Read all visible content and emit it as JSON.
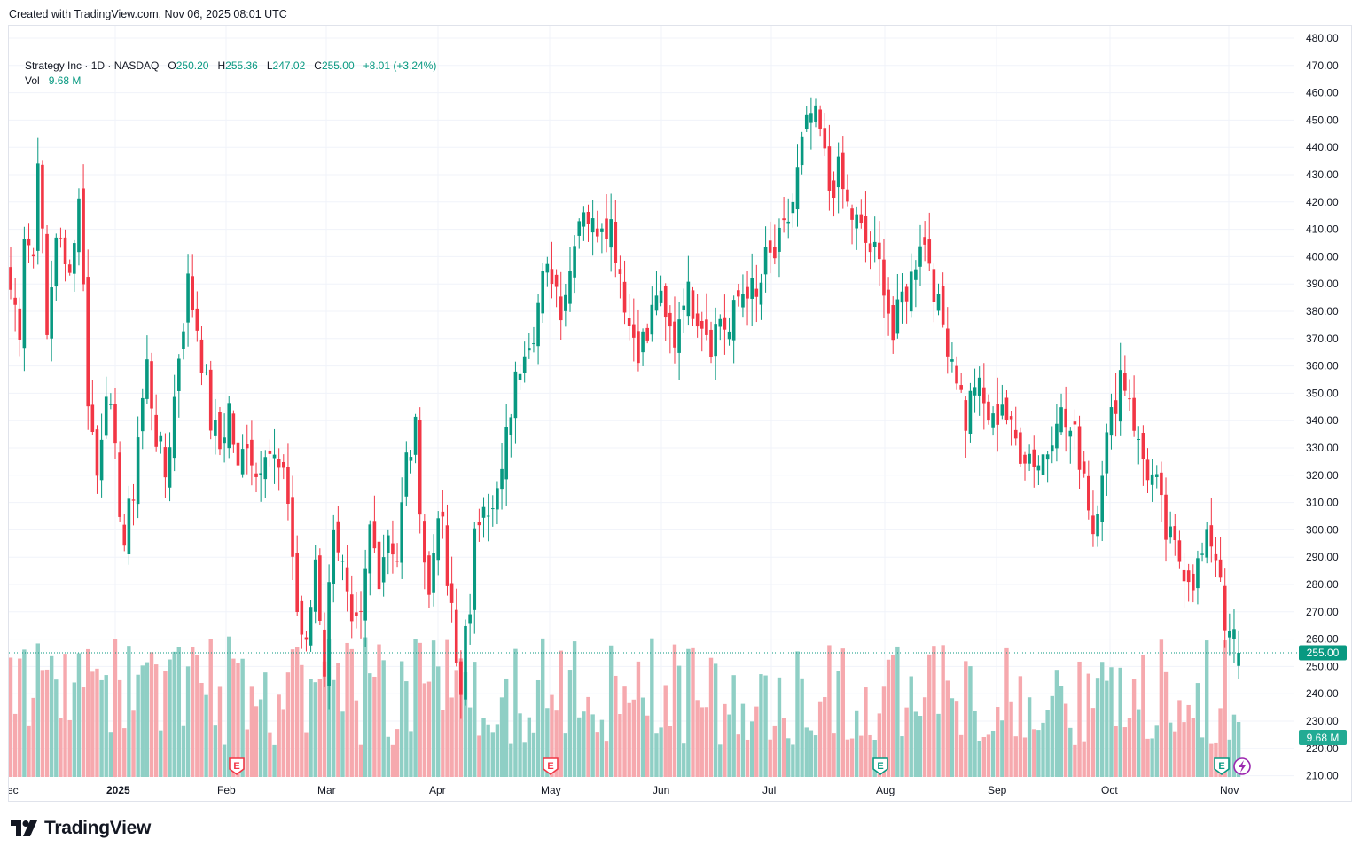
{
  "header": {
    "credit": "Created with TradingView.com, Nov 06, 2025 08:01 UTC"
  },
  "legend": {
    "symbol": "Strategy Inc · 1D · NASDAQ",
    "o_label": "O",
    "o_value": "250.20",
    "h_label": "H",
    "h_value": "255.36",
    "l_label": "L",
    "l_value": "247.02",
    "c_label": "C",
    "c_value": "255.00",
    "change": "+8.01 (+3.24%)",
    "vol_label": "Vol",
    "vol_value": "9.68 M"
  },
  "price_badge": "255.00",
  "volume_badge": "9.68 M",
  "brand": {
    "name": "TradingView"
  },
  "colors": {
    "up": "#089981",
    "down": "#f23645",
    "up_vol": "#8fcfc5",
    "down_vol": "#f6a9ae",
    "grid": "#f0f3fa",
    "axis_text": "#131722",
    "earnings_down": "#f23645",
    "earnings_up": "#089981",
    "lightning": "#9c27b0"
  },
  "chart_data": {
    "type": "candlestick",
    "title": "Strategy Inc · 1D · NASDAQ",
    "y_axis": {
      "min": 210,
      "max": 480,
      "step": 10,
      "side": "right"
    },
    "x_axis_labels": [
      "ec",
      "2025",
      "Feb",
      "Mar",
      "Apr",
      "May",
      "Jun",
      "Jul",
      "Aug",
      "Sep",
      "Oct",
      "Nov"
    ],
    "last_price": 255.0,
    "last_volume": "9.68 M",
    "earnings_markers": [
      {
        "month": "Feb",
        "label": "E",
        "type": "miss"
      },
      {
        "month": "May",
        "label": "E",
        "type": "miss"
      },
      {
        "month": "Aug",
        "label": "E",
        "type": "beat"
      },
      {
        "month": "Nov",
        "label": "E",
        "type": "beat"
      }
    ],
    "waypoints": [
      [
        0,
        388
      ],
      [
        2,
        375
      ],
      [
        3,
        410
      ],
      [
        5,
        400
      ],
      [
        6,
        440
      ],
      [
        8,
        370
      ],
      [
        10,
        410
      ],
      [
        12,
        395
      ],
      [
        14,
        405
      ],
      [
        15,
        425
      ],
      [
        17,
        350
      ],
      [
        19,
        320
      ],
      [
        21,
        355
      ],
      [
        23,
        325
      ],
      [
        25,
        295
      ],
      [
        27,
        315
      ],
      [
        28,
        335
      ],
      [
        30,
        360
      ],
      [
        32,
        335
      ],
      [
        34,
        320
      ],
      [
        36,
        348
      ],
      [
        37,
        365
      ],
      [
        39,
        390
      ],
      [
        41,
        375
      ],
      [
        44,
        340
      ],
      [
        46,
        330
      ],
      [
        48,
        345
      ],
      [
        50,
        320
      ],
      [
        52,
        335
      ],
      [
        54,
        320
      ],
      [
        56,
        333
      ],
      [
        58,
        325
      ],
      [
        61,
        312
      ],
      [
        63,
        270
      ],
      [
        65,
        255
      ],
      [
        67,
        290
      ],
      [
        69,
        250
      ],
      [
        71,
        305
      ],
      [
        73,
        285
      ],
      [
        75,
        260
      ],
      [
        77,
        265
      ],
      [
        79,
        300
      ],
      [
        81,
        285
      ],
      [
        83,
        300
      ],
      [
        85,
        290
      ],
      [
        87,
        325
      ],
      [
        89,
        335
      ],
      [
        91,
        290
      ],
      [
        92,
        275
      ],
      [
        94,
        310
      ],
      [
        95,
        298
      ],
      [
        96,
        280
      ],
      [
        97,
        268
      ],
      [
        98,
        250
      ],
      [
        99,
        240
      ],
      [
        100,
        270
      ],
      [
        101,
        265
      ],
      [
        102,
        295
      ],
      [
        104,
        315
      ],
      [
        106,
        305
      ],
      [
        108,
        320
      ],
      [
        110,
        345
      ],
      [
        113,
        370
      ],
      [
        115,
        375
      ],
      [
        117,
        390
      ],
      [
        119,
        395
      ],
      [
        121,
        383
      ],
      [
        123,
        395
      ],
      [
        124,
        410
      ],
      [
        126,
        420
      ],
      [
        128,
        410
      ],
      [
        130,
        415
      ],
      [
        132,
        412
      ],
      [
        134,
        395
      ],
      [
        136,
        375
      ],
      [
        138,
        368
      ],
      [
        140,
        370
      ],
      [
        142,
        388
      ],
      [
        144,
        375
      ],
      [
        146,
        370
      ],
      [
        148,
        388
      ],
      [
        150,
        383
      ],
      [
        152,
        378
      ],
      [
        154,
        370
      ],
      [
        156,
        378
      ],
      [
        158,
        372
      ],
      [
        160,
        385
      ],
      [
        162,
        390
      ],
      [
        164,
        383
      ],
      [
        166,
        398
      ],
      [
        168,
        400
      ],
      [
        170,
        408
      ],
      [
        172,
        420
      ],
      [
        174,
        440
      ],
      [
        176,
        452
      ],
      [
        178,
        445
      ],
      [
        180,
        425
      ],
      [
        182,
        430
      ],
      [
        184,
        418
      ],
      [
        186,
        412
      ],
      [
        188,
        405
      ],
      [
        190,
        400
      ],
      [
        192,
        392
      ],
      [
        194,
        370
      ],
      [
        196,
        385
      ],
      [
        198,
        392
      ],
      [
        200,
        408
      ],
      [
        202,
        400
      ],
      [
        204,
        380
      ],
      [
        206,
        370
      ],
      [
        208,
        358
      ],
      [
        210,
        340
      ],
      [
        212,
        355
      ],
      [
        214,
        345
      ],
      [
        216,
        338
      ],
      [
        218,
        348
      ],
      [
        220,
        335
      ],
      [
        222,
        330
      ],
      [
        224,
        328
      ],
      [
        226,
        325
      ],
      [
        228,
        330
      ],
      [
        230,
        345
      ],
      [
        232,
        338
      ],
      [
        234,
        333
      ],
      [
        236,
        322
      ],
      [
        238,
        300
      ],
      [
        240,
        325
      ],
      [
        242,
        340
      ],
      [
        244,
        358
      ],
      [
        246,
        350
      ],
      [
        248,
        330
      ],
      [
        250,
        322
      ],
      [
        252,
        315
      ],
      [
        254,
        298
      ],
      [
        256,
        292
      ],
      [
        258,
        287
      ],
      [
        260,
        283
      ],
      [
        262,
        290
      ],
      [
        264,
        297
      ],
      [
        266,
        285
      ],
      [
        267,
        268
      ],
      [
        268,
        257
      ],
      [
        269,
        262
      ],
      [
        270,
        255
      ]
    ],
    "volume_notes": "Volume histogram overlaid at bottom, ~9-30 M range, green for up days, red for down days"
  }
}
